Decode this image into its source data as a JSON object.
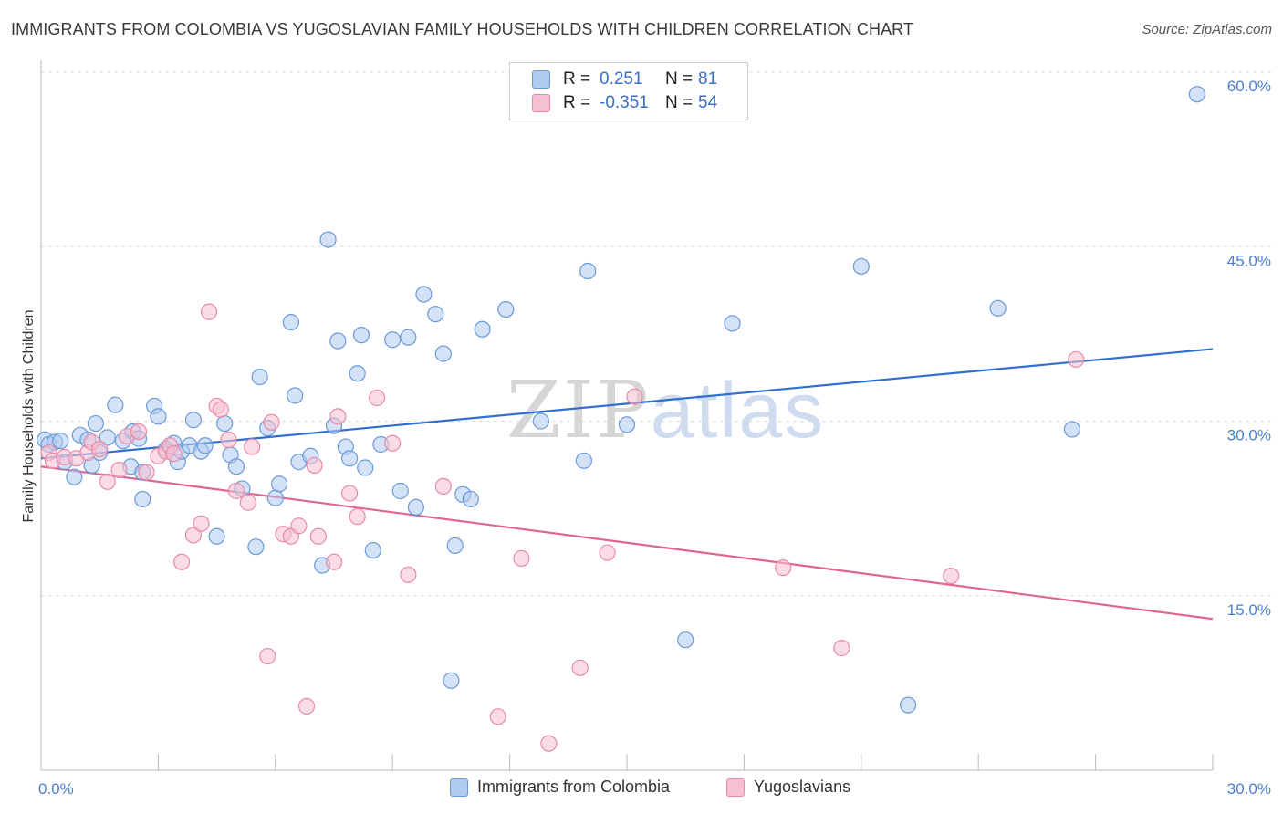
{
  "title": "IMMIGRANTS FROM COLOMBIA VS YUGOSLAVIAN FAMILY HOUSEHOLDS WITH CHILDREN CORRELATION CHART",
  "source": "Source: ZipAtlas.com",
  "watermark": {
    "zip": "ZIP",
    "atlas": "atlas"
  },
  "colors": {
    "colombia_fill": "#aecbf0",
    "colombia_stroke": "#6b9ad8",
    "colombia_line": "#2f6fcf",
    "yugo_fill": "#f7c0d0",
    "yugo_stroke": "#e88aa8",
    "yugo_line": "#e06595",
    "axis_label": "#4a7fd0",
    "grid": "#dddddd"
  },
  "legend": {
    "rows": [
      {
        "r_label": "R =",
        "r_value": "0.251",
        "n_label": "N =",
        "n_value": "81"
      },
      {
        "r_label": "R =",
        "r_value": "-0.351",
        "n_label": "N =",
        "n_value": "54"
      }
    ]
  },
  "chart_data": {
    "type": "scatter",
    "ylabel": "Family Households with Children",
    "xlim": [
      0,
      30
    ],
    "ylim": [
      0,
      60
    ],
    "x_ticks": [
      "0.0%",
      "30.0%"
    ],
    "y_ticks": [
      {
        "value": 15,
        "label": "15.0%"
      },
      {
        "value": 30,
        "label": "30.0%"
      },
      {
        "value": 45,
        "label": "45.0%"
      },
      {
        "value": 60,
        "label": "60.0%"
      }
    ],
    "grid": true,
    "legend_position": "top-center",
    "series": [
      {
        "name": "Immigrants from Colombia",
        "trend": [
          [
            0,
            26.8
          ],
          [
            30,
            36.2
          ]
        ],
        "points": [
          [
            0.1,
            28.4
          ],
          [
            0.2,
            28.0
          ],
          [
            0.35,
            28.2
          ],
          [
            0.5,
            28.3
          ],
          [
            0.6,
            26.5
          ],
          [
            0.85,
            25.2
          ],
          [
            1.0,
            28.8
          ],
          [
            1.2,
            28.4
          ],
          [
            1.3,
            26.2
          ],
          [
            1.4,
            29.8
          ],
          [
            1.5,
            27.3
          ],
          [
            1.7,
            28.6
          ],
          [
            1.9,
            31.4
          ],
          [
            2.1,
            28.3
          ],
          [
            2.3,
            26.1
          ],
          [
            2.35,
            29.1
          ],
          [
            2.5,
            28.5
          ],
          [
            2.6,
            25.6
          ],
          [
            2.6,
            23.3
          ],
          [
            2.9,
            31.3
          ],
          [
            3.0,
            30.4
          ],
          [
            3.2,
            27.6
          ],
          [
            3.4,
            28.1
          ],
          [
            3.5,
            26.5
          ],
          [
            3.6,
            27.4
          ],
          [
            3.8,
            27.9
          ],
          [
            3.9,
            30.1
          ],
          [
            4.1,
            27.4
          ],
          [
            4.2,
            27.9
          ],
          [
            4.5,
            20.1
          ],
          [
            4.7,
            29.8
          ],
          [
            4.85,
            27.1
          ],
          [
            5.0,
            26.1
          ],
          [
            5.15,
            24.2
          ],
          [
            5.5,
            19.2
          ],
          [
            5.6,
            33.8
          ],
          [
            5.8,
            29.4
          ],
          [
            6.0,
            23.4
          ],
          [
            6.1,
            24.6
          ],
          [
            6.4,
            38.5
          ],
          [
            6.5,
            32.2
          ],
          [
            6.6,
            26.5
          ],
          [
            6.9,
            27.0
          ],
          [
            7.2,
            17.6
          ],
          [
            7.35,
            45.6
          ],
          [
            7.5,
            29.6
          ],
          [
            7.6,
            36.9
          ],
          [
            7.8,
            27.8
          ],
          [
            7.9,
            26.8
          ],
          [
            8.1,
            34.1
          ],
          [
            8.2,
            37.4
          ],
          [
            8.3,
            26.0
          ],
          [
            8.5,
            18.9
          ],
          [
            8.7,
            28.0
          ],
          [
            9.0,
            37.0
          ],
          [
            9.2,
            24.0
          ],
          [
            9.4,
            37.2
          ],
          [
            9.6,
            22.6
          ],
          [
            9.8,
            40.9
          ],
          [
            10.1,
            39.2
          ],
          [
            10.3,
            35.8
          ],
          [
            10.5,
            7.7
          ],
          [
            10.6,
            19.3
          ],
          [
            10.8,
            23.7
          ],
          [
            11.0,
            23.3
          ],
          [
            11.3,
            37.9
          ],
          [
            11.9,
            39.6
          ],
          [
            12.8,
            30.0
          ],
          [
            13.9,
            26.6
          ],
          [
            14.0,
            42.9
          ],
          [
            15.0,
            29.7
          ],
          [
            16.5,
            11.2
          ],
          [
            17.7,
            38.4
          ],
          [
            21.0,
            43.3
          ],
          [
            22.2,
            5.6
          ],
          [
            24.5,
            39.7
          ],
          [
            26.4,
            29.3
          ],
          [
            29.6,
            58.1
          ]
        ]
      },
      {
        "name": "Yugoslavians",
        "trend": [
          [
            0,
            26.1
          ],
          [
            30,
            13.0
          ]
        ],
        "points": [
          [
            0.2,
            27.3
          ],
          [
            0.3,
            26.6
          ],
          [
            0.6,
            26.9
          ],
          [
            0.9,
            26.8
          ],
          [
            1.2,
            27.3
          ],
          [
            1.3,
            28.2
          ],
          [
            1.5,
            27.6
          ],
          [
            1.7,
            24.8
          ],
          [
            2.0,
            25.8
          ],
          [
            2.2,
            28.7
          ],
          [
            2.5,
            29.1
          ],
          [
            2.7,
            25.6
          ],
          [
            3.0,
            27.0
          ],
          [
            3.2,
            27.4
          ],
          [
            3.3,
            27.9
          ],
          [
            3.4,
            27.2
          ],
          [
            3.6,
            17.9
          ],
          [
            3.9,
            20.2
          ],
          [
            4.1,
            21.2
          ],
          [
            4.3,
            39.4
          ],
          [
            4.5,
            31.3
          ],
          [
            4.6,
            31.0
          ],
          [
            4.8,
            28.4
          ],
          [
            5.0,
            24.0
          ],
          [
            5.3,
            23.0
          ],
          [
            5.4,
            27.8
          ],
          [
            5.8,
            9.8
          ],
          [
            5.9,
            29.9
          ],
          [
            6.2,
            20.3
          ],
          [
            6.4,
            20.1
          ],
          [
            6.6,
            21.0
          ],
          [
            6.8,
            5.5
          ],
          [
            7.0,
            26.2
          ],
          [
            7.1,
            20.1
          ],
          [
            7.5,
            17.9
          ],
          [
            7.6,
            30.4
          ],
          [
            7.9,
            23.8
          ],
          [
            8.1,
            21.8
          ],
          [
            8.6,
            32.0
          ],
          [
            9.0,
            28.1
          ],
          [
            9.4,
            16.8
          ],
          [
            10.3,
            24.4
          ],
          [
            11.7,
            4.6
          ],
          [
            12.3,
            18.2
          ],
          [
            13.0,
            2.3
          ],
          [
            13.8,
            8.8
          ],
          [
            14.5,
            18.7
          ],
          [
            15.2,
            32.1
          ],
          [
            19.0,
            17.4
          ],
          [
            20.5,
            10.5
          ],
          [
            23.3,
            16.7
          ],
          [
            26.5,
            35.3
          ]
        ]
      }
    ]
  }
}
